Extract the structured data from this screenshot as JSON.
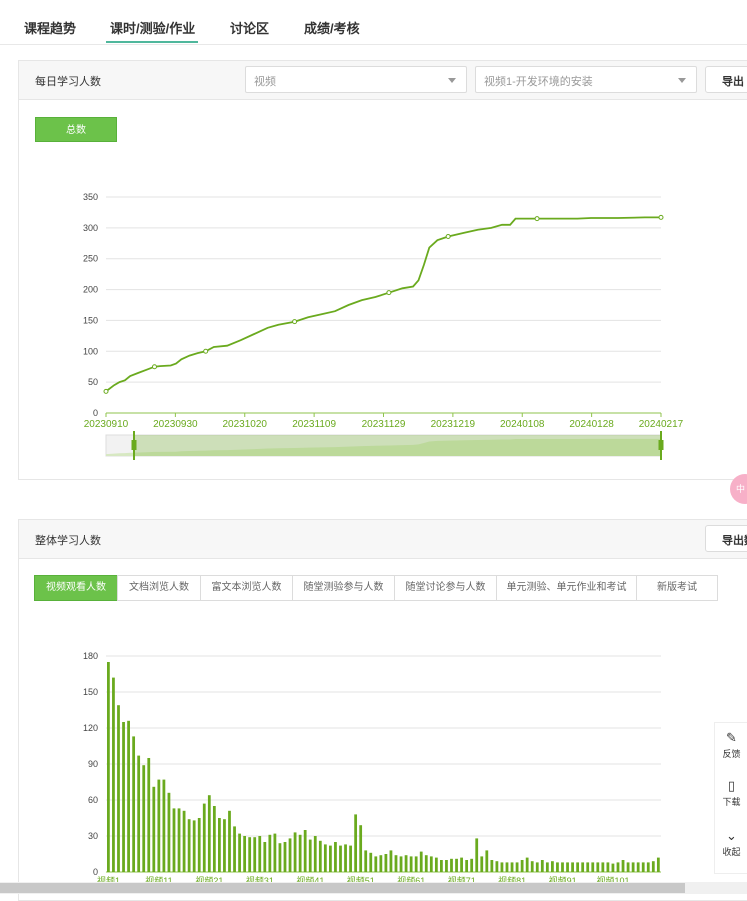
{
  "tabs": [
    {
      "label": "课程趋势"
    },
    {
      "label": "课时/测验/作业"
    },
    {
      "label": "讨论区"
    },
    {
      "label": "成绩/考核"
    }
  ],
  "daily_panel": {
    "title": "每日学习人数",
    "select_type": "视频",
    "select_item": "视频1-开发环境的安装",
    "export_label": "导出",
    "total_button": "总数"
  },
  "overall_panel": {
    "title": "整体学习人数",
    "export_label": "导出数",
    "subtabs": [
      {
        "label": "视频观看人数"
      },
      {
        "label": "文档浏览人数"
      },
      {
        "label": "富文本浏览人数"
      },
      {
        "label": "随堂测验参与人数"
      },
      {
        "label": "随堂讨论参与人数"
      },
      {
        "label": "单元测验、单元作业和考试"
      },
      {
        "label": "新版考试"
      }
    ]
  },
  "side_tools": {
    "feedback": "反馈",
    "download": "下载",
    "collapse": "收起"
  },
  "float_badge": "中",
  "accent_green": "#6aaa1e",
  "chart_data": [
    {
      "type": "line",
      "title": "",
      "x_tick_labels": [
        "20230910",
        "20230930",
        "20231020",
        "20231109",
        "20231129",
        "20231219",
        "20240108",
        "20240128",
        "20240217"
      ],
      "ylim": [
        0,
        350
      ],
      "y_ticks": [
        0,
        50,
        100,
        150,
        200,
        250,
        300,
        350
      ],
      "grid": true,
      "series": [
        {
          "values": [
            [
              0,
              35
            ],
            [
              3,
              45
            ],
            [
              5,
              50
            ],
            [
              7,
              53
            ],
            [
              9,
              60
            ],
            [
              12,
              65
            ],
            [
              15,
              70
            ],
            [
              18,
              75
            ],
            [
              20,
              76
            ],
            [
              24,
              77
            ],
            [
              26,
              80
            ],
            [
              28,
              87
            ],
            [
              31,
              93
            ],
            [
              34,
              97
            ],
            [
              37,
              100
            ],
            [
              40,
              107
            ],
            [
              45,
              109
            ],
            [
              50,
              118
            ],
            [
              55,
              128
            ],
            [
              60,
              138
            ],
            [
              64,
              143
            ],
            [
              70,
              148
            ],
            [
              75,
              155
            ],
            [
              80,
              160
            ],
            [
              85,
              165
            ],
            [
              90,
              175
            ],
            [
              95,
              183
            ],
            [
              100,
              188
            ],
            [
              105,
              195
            ],
            [
              110,
              202
            ],
            [
              114,
              205
            ],
            [
              116,
              215
            ],
            [
              118,
              240
            ],
            [
              120,
              268
            ],
            [
              123,
              280
            ],
            [
              127,
              286
            ],
            [
              133,
              292
            ],
            [
              138,
              297
            ],
            [
              143,
              300
            ],
            [
              147,
              305
            ],
            [
              150,
              305
            ],
            [
              152,
              315
            ],
            [
              160,
              315
            ],
            [
              170,
              315
            ],
            [
              175,
              315
            ],
            [
              180,
              316
            ],
            [
              190,
              316
            ],
            [
              200,
              317
            ],
            [
              206,
              317
            ]
          ]
        }
      ],
      "slider": true
    },
    {
      "type": "bar",
      "title": "",
      "ylim": [
        0,
        180
      ],
      "y_ticks": [
        0,
        30,
        60,
        90,
        120,
        150,
        180
      ],
      "grid": true,
      "x_tick_labels": [
        "视频1",
        "视频11",
        "视频21",
        "视频31",
        "视频41",
        "视频51",
        "视频61",
        "视频71",
        "视频81",
        "视频91",
        "视频101"
      ],
      "series": [
        {
          "values": [
            175,
            162,
            139,
            125,
            126,
            113,
            97,
            89,
            95,
            71,
            77,
            77,
            66,
            53,
            53,
            51,
            44,
            43,
            45,
            57,
            64,
            55,
            45,
            44,
            51,
            38,
            32,
            30,
            29,
            29,
            30,
            25,
            31,
            32,
            24,
            25,
            28,
            33,
            31,
            35,
            27,
            30,
            26,
            23,
            22,
            25,
            22,
            23,
            22,
            48,
            39,
            18,
            16,
            13,
            14,
            15,
            18,
            14,
            13,
            14,
            13,
            13,
            17,
            14,
            13,
            12,
            10,
            10,
            11,
            11,
            12,
            10,
            11,
            28,
            13,
            18,
            10,
            9,
            8,
            8,
            8,
            8,
            10,
            12,
            9,
            8,
            10,
            8,
            9,
            8,
            8,
            8,
            8,
            8,
            8,
            8,
            8,
            8,
            8,
            8,
            7,
            8,
            10,
            8,
            8,
            8,
            8,
            8,
            9,
            12
          ]
        }
      ]
    }
  ]
}
